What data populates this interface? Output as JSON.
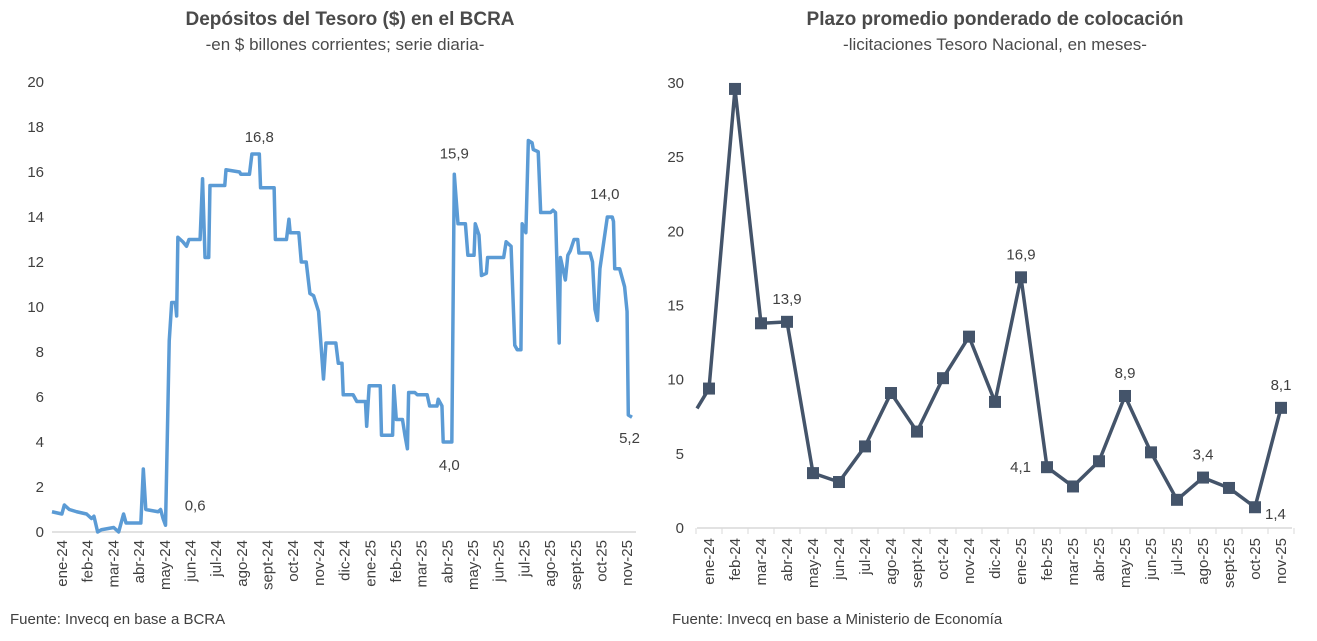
{
  "chart_data": [
    {
      "type": "line",
      "title": "Depósitos del Tesoro ($) en el BCRA",
      "subtitle": "-en $ billones corrientes; serie diaria-",
      "source": "Fuente: Invecq en base a BCRA",
      "ylim": [
        0,
        20
      ],
      "yticks": [
        "0",
        "2",
        "4",
        "6",
        "8",
        "10",
        "12",
        "14",
        "16",
        "18",
        "20"
      ],
      "categories": [
        "ene-24",
        "feb-24",
        "mar-24",
        "abr-24",
        "may-24",
        "jun-24",
        "jul-24",
        "ago-24",
        "sept-24",
        "oct-24",
        "nov-24",
        "dic-24",
        "ene-25",
        "feb-25",
        "mar-25",
        "abr-25",
        "may-25",
        "jun-25",
        "jul-25",
        "ago-25",
        "sept-25",
        "oct-25",
        "nov-25"
      ],
      "x_unit": "months since ene-24 (approx.)",
      "series": [
        {
          "name": "Depósitos",
          "color": "#5B9BD5",
          "points": [
            [
              0,
              0.9
            ],
            [
              0.4,
              0.8
            ],
            [
              0.5,
              1.2
            ],
            [
              0.7,
              1.0
            ],
            [
              1.0,
              0.9
            ],
            [
              1.4,
              0.8
            ],
            [
              1.6,
              0.6
            ],
            [
              1.7,
              0.7
            ],
            [
              1.85,
              0.0
            ],
            [
              2.0,
              0.1
            ],
            [
              2.5,
              0.2
            ],
            [
              2.7,
              0.0
            ],
            [
              2.9,
              0.8
            ],
            [
              3.0,
              0.4
            ],
            [
              3.6,
              0.4
            ],
            [
              3.7,
              2.8
            ],
            [
              3.8,
              1.0
            ],
            [
              4.3,
              0.9
            ],
            [
              4.4,
              1.0
            ],
            [
              4.5,
              0.6
            ],
            [
              4.6,
              0.3
            ],
            [
              4.75,
              8.5
            ],
            [
              4.85,
              10.2
            ],
            [
              5.0,
              10.2
            ],
            [
              5.05,
              9.6
            ],
            [
              5.1,
              13.1
            ],
            [
              5.3,
              12.9
            ],
            [
              5.45,
              12.7
            ],
            [
              5.55,
              13.0
            ],
            [
              6.0,
              13.0
            ],
            [
              6.1,
              15.7
            ],
            [
              6.2,
              12.2
            ],
            [
              6.35,
              12.2
            ],
            [
              6.4,
              15.4
            ],
            [
              7.0,
              15.4
            ],
            [
              7.05,
              16.1
            ],
            [
              7.6,
              16.0
            ],
            [
              7.65,
              15.9
            ],
            [
              8.0,
              15.9
            ],
            [
              8.1,
              16.8
            ],
            [
              8.4,
              16.8
            ],
            [
              8.45,
              15.3
            ],
            [
              9.0,
              15.3
            ],
            [
              9.05,
              13.0
            ],
            [
              9.5,
              13.0
            ],
            [
              9.6,
              13.9
            ],
            [
              9.65,
              13.3
            ],
            [
              10.0,
              13.3
            ],
            [
              10.1,
              12.0
            ],
            [
              10.3,
              12.0
            ],
            [
              10.45,
              10.6
            ],
            [
              10.6,
              10.5
            ],
            [
              10.8,
              9.8
            ],
            [
              11.0,
              6.8
            ],
            [
              11.1,
              8.4
            ],
            [
              11.5,
              8.4
            ],
            [
              11.6,
              7.5
            ],
            [
              11.75,
              7.5
            ],
            [
              11.8,
              6.1
            ],
            [
              12.2,
              6.1
            ],
            [
              12.35,
              5.8
            ],
            [
              12.7,
              5.8
            ],
            [
              12.75,
              4.7
            ],
            [
              12.85,
              6.5
            ],
            [
              13.3,
              6.5
            ],
            [
              13.35,
              4.3
            ],
            [
              13.8,
              4.3
            ],
            [
              13.85,
              6.5
            ],
            [
              13.95,
              5.0
            ],
            [
              14.2,
              5.0
            ],
            [
              14.3,
              4.3
            ],
            [
              14.4,
              3.7
            ],
            [
              14.45,
              6.2
            ],
            [
              14.7,
              6.2
            ],
            [
              14.8,
              6.1
            ],
            [
              15.2,
              6.1
            ],
            [
              15.3,
              5.6
            ],
            [
              15.6,
              5.6
            ],
            [
              15.65,
              5.9
            ],
            [
              15.8,
              5.6
            ],
            [
              15.85,
              4.0
            ],
            [
              16.2,
              4.0
            ],
            [
              16.3,
              15.9
            ],
            [
              16.45,
              13.7
            ],
            [
              16.75,
              13.7
            ],
            [
              16.85,
              12.3
            ],
            [
              17.1,
              12.3
            ],
            [
              17.15,
              13.7
            ],
            [
              17.3,
              13.2
            ],
            [
              17.4,
              11.4
            ],
            [
              17.6,
              11.5
            ],
            [
              17.65,
              12.2
            ],
            [
              18.3,
              12.2
            ],
            [
              18.4,
              12.9
            ],
            [
              18.6,
              12.7
            ],
            [
              18.75,
              8.3
            ],
            [
              18.85,
              8.1
            ],
            [
              19.0,
              8.1
            ],
            [
              19.05,
              13.7
            ],
            [
              19.2,
              13.3
            ],
            [
              19.3,
              17.4
            ],
            [
              19.45,
              17.3
            ],
            [
              19.5,
              17.0
            ],
            [
              19.7,
              16.9
            ],
            [
              19.8,
              14.2
            ],
            [
              20.2,
              14.2
            ],
            [
              20.3,
              14.3
            ],
            [
              20.4,
              14.2
            ],
            [
              20.55,
              8.4
            ],
            [
              20.6,
              12.2
            ],
            [
              20.8,
              11.2
            ],
            [
              20.9,
              12.3
            ],
            [
              21.0,
              12.5
            ],
            [
              21.15,
              13.0
            ],
            [
              21.3,
              13.0
            ],
            [
              21.35,
              12.4
            ],
            [
              21.8,
              12.4
            ],
            [
              21.9,
              12.0
            ],
            [
              22.0,
              9.9
            ],
            [
              22.1,
              9.4
            ],
            [
              22.2,
              11.7
            ],
            [
              22.5,
              14.0
            ],
            [
              22.7,
              14.0
            ],
            [
              22.75,
              13.8
            ],
            [
              22.8,
              11.7
            ],
            [
              23.0,
              11.7
            ],
            [
              23.2,
              10.9
            ],
            [
              23.3,
              9.8
            ],
            [
              23.35,
              5.2
            ],
            [
              23.5,
              5.1
            ]
          ]
        }
      ],
      "annotations": [
        {
          "text": "0,6",
          "t": 5.8,
          "y": 0.6
        },
        {
          "text": "16,8",
          "t": 8.4,
          "y": 16.8
        },
        {
          "text": "15,9",
          "t": 16.3,
          "y": 15.9
        },
        {
          "text": "4,0",
          "t": 16.1,
          "y": 4.0
        },
        {
          "text": "14,0",
          "t": 22.4,
          "y": 14.0
        },
        {
          "text": "5,2",
          "t": 23.4,
          "y": 5.2
        }
      ]
    },
    {
      "type": "line",
      "title": "Plazo promedio ponderado de colocación",
      "subtitle": "-licitaciones Tesoro Nacional, en meses-",
      "source": "Fuente: Invecq en base a Ministerio de Economía",
      "ylim": [
        0,
        30
      ],
      "yticks": [
        "0",
        "5",
        "10",
        "15",
        "20",
        "25",
        "30"
      ],
      "categories": [
        "ene-24",
        "feb-24",
        "mar-24",
        "abr-24",
        "may-24",
        "jun-24",
        "jul-24",
        "ago-24",
        "sept-24",
        "oct-24",
        "nov-24",
        "dic-24",
        "ene-25",
        "feb-25",
        "mar-25",
        "abr-25",
        "may-25",
        "jun-25",
        "jul-25",
        "ago-25",
        "sept-25",
        "oct-25",
        "nov-25"
      ],
      "prior_value": 6.5,
      "series": [
        {
          "name": "Plazo",
          "color": "#44546A",
          "values": [
            9.4,
            29.6,
            13.8,
            13.9,
            3.7,
            3.1,
            5.5,
            9.1,
            6.5,
            10.1,
            12.9,
            8.5,
            16.9,
            4.1,
            2.8,
            4.5,
            8.9,
            5.1,
            1.9,
            3.4,
            2.7,
            1.4,
            8.1
          ]
        }
      ],
      "annotations": [
        {
          "text": "13,9",
          "index": 3,
          "pos": "above"
        },
        {
          "text": "16,9",
          "index": 12,
          "pos": "above"
        },
        {
          "text": "4,1",
          "index": 13,
          "pos": "left"
        },
        {
          "text": "8,9",
          "index": 16,
          "pos": "above"
        },
        {
          "text": "3,4",
          "index": 19,
          "pos": "above"
        },
        {
          "text": "1,4",
          "index": 21,
          "pos": "right"
        },
        {
          "text": "8,1",
          "index": 22,
          "pos": "above"
        }
      ]
    }
  ]
}
